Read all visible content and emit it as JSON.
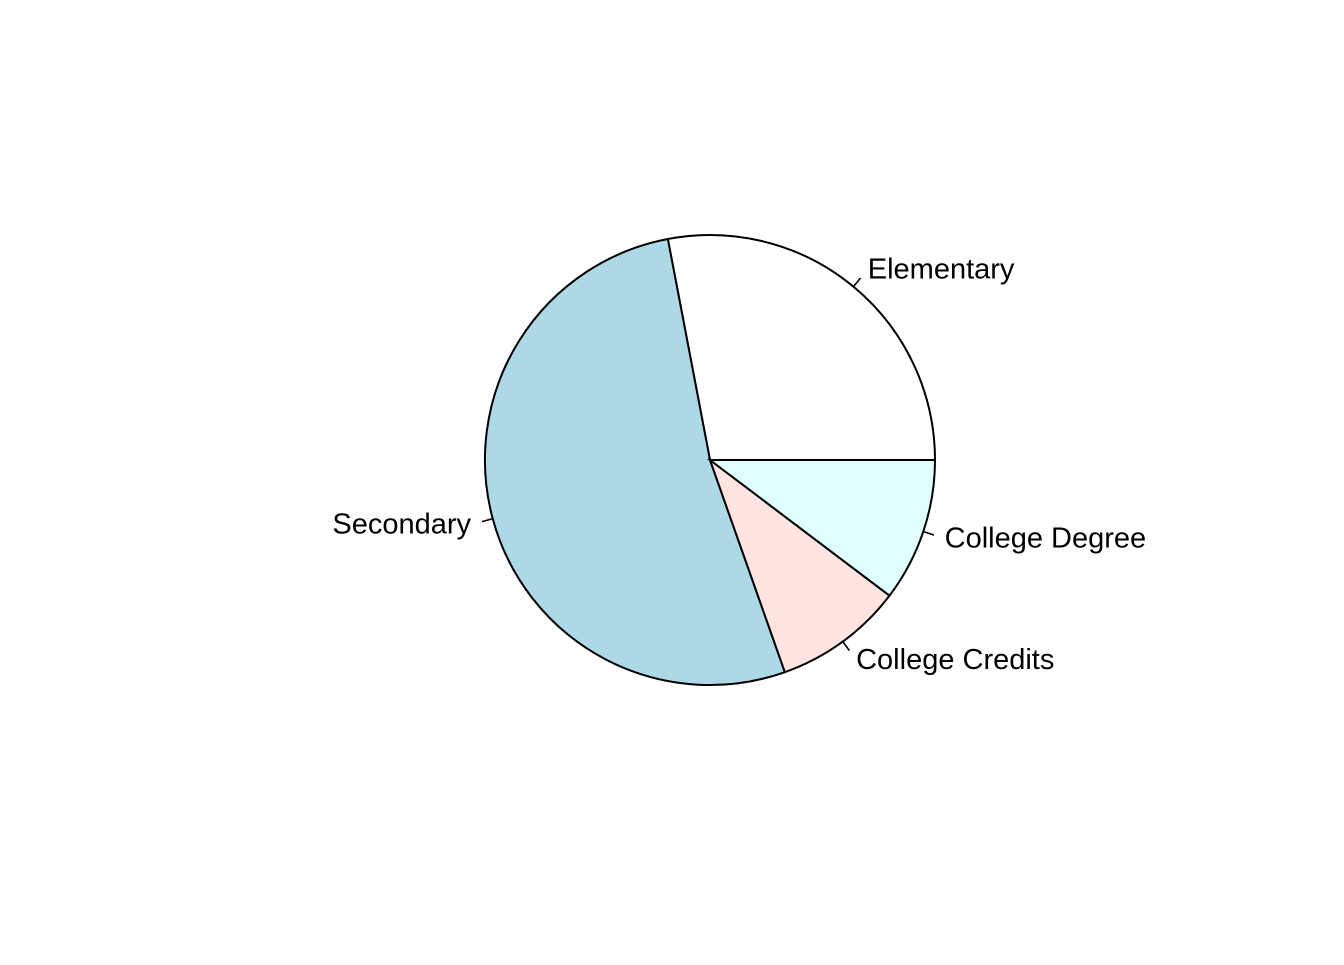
{
  "chart_data": {
    "type": "pie",
    "title": "",
    "start_angle_deg": 0,
    "direction": "counterclockwise",
    "categories": [
      "Elementary",
      "Secondary",
      "College Credits",
      "College Degree"
    ],
    "values": [
      28.0,
      52.4,
      9.3,
      10.3
    ],
    "colors": [
      "#ffffff",
      "#add8e6",
      "#ffe4e1",
      "#e0ffff"
    ],
    "legend": "none",
    "labels_outside": true
  }
}
